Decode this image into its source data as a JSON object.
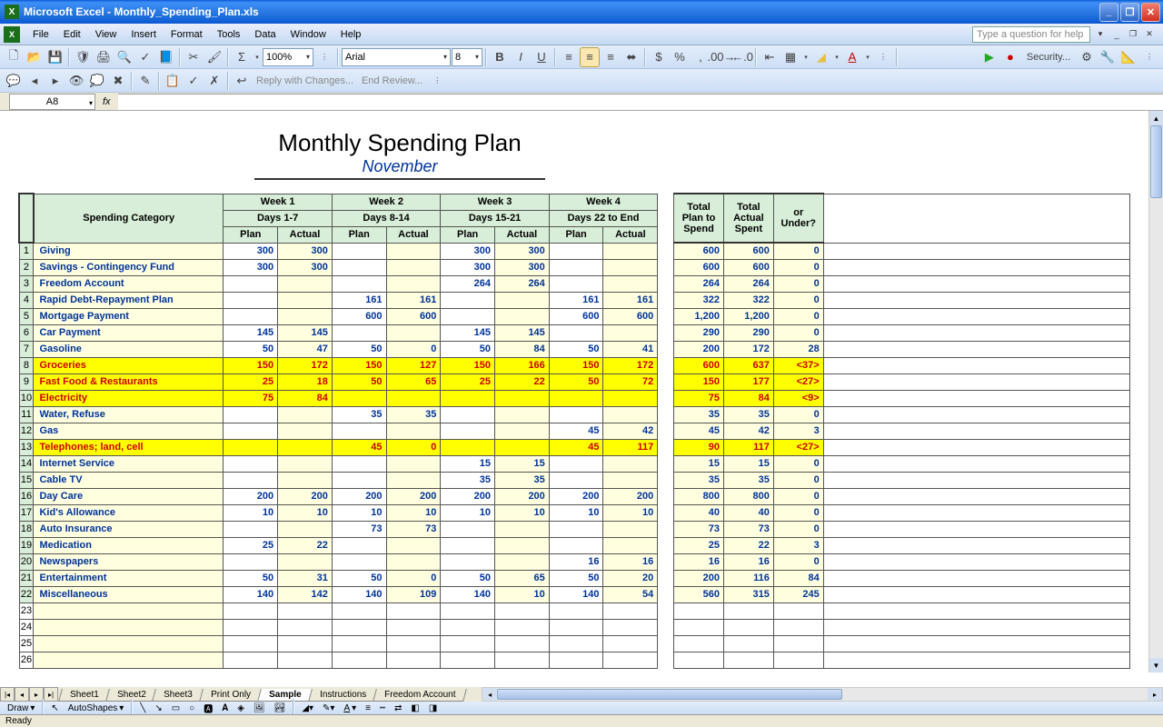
{
  "window": {
    "title": "Microsoft Excel - Monthly_Spending_Plan.xls"
  },
  "menu": [
    "File",
    "Edit",
    "View",
    "Insert",
    "Format",
    "Tools",
    "Data",
    "Window",
    "Help"
  ],
  "help_placeholder": "Type a question for help",
  "toolbar": {
    "zoom": "100%",
    "font": "Arial",
    "size": "8"
  },
  "reviewing": {
    "reply": "Reply with Changes...",
    "end": "End Review..."
  },
  "namebox": "A8",
  "doc": {
    "title": "Monthly Spending Plan",
    "subtitle": "November"
  },
  "headers": {
    "category": "Spending Category",
    "weeks": [
      {
        "top": "Week 1",
        "sub": "Days 1-7"
      },
      {
        "top": "Week 2",
        "sub": "Days 8-14"
      },
      {
        "top": "Week 3",
        "sub": "Days 15-21"
      },
      {
        "top": "Week 4",
        "sub": "Days 22 to End"
      }
    ],
    "plan": "Plan",
    "actual": "Actual",
    "totals": [
      "Total Plan to Spend",
      "Total Actual Spent",
      "<Over> or Under?"
    ]
  },
  "rows": [
    {
      "n": 1,
      "cat": "Giving",
      "w": [
        [
          "300",
          "300"
        ],
        [
          "",
          ""
        ],
        [
          "300",
          "300"
        ],
        [
          "",
          ""
        ]
      ],
      "t": [
        "600",
        "600",
        "0"
      ]
    },
    {
      "n": 2,
      "cat": "Savings - Contingency Fund",
      "w": [
        [
          "300",
          "300"
        ],
        [
          "",
          ""
        ],
        [
          "300",
          "300"
        ],
        [
          "",
          ""
        ]
      ],
      "t": [
        "600",
        "600",
        "0"
      ]
    },
    {
      "n": 3,
      "cat": "Freedom Account",
      "w": [
        [
          "",
          ""
        ],
        [
          "",
          ""
        ],
        [
          "264",
          "264"
        ],
        [
          "",
          ""
        ]
      ],
      "t": [
        "264",
        "264",
        "0"
      ]
    },
    {
      "n": 4,
      "cat": "Rapid Debt-Repayment Plan",
      "w": [
        [
          "",
          ""
        ],
        [
          "161",
          "161"
        ],
        [
          "",
          ""
        ],
        [
          "161",
          "161"
        ]
      ],
      "t": [
        "322",
        "322",
        "0"
      ]
    },
    {
      "n": 5,
      "cat": "Mortgage Payment",
      "w": [
        [
          "",
          ""
        ],
        [
          "600",
          "600"
        ],
        [
          "",
          ""
        ],
        [
          "600",
          "600"
        ]
      ],
      "t": [
        "1,200",
        "1,200",
        "0"
      ]
    },
    {
      "n": 6,
      "cat": "Car Payment",
      "w": [
        [
          "145",
          "145"
        ],
        [
          "",
          ""
        ],
        [
          "145",
          "145"
        ],
        [
          "",
          ""
        ]
      ],
      "t": [
        "290",
        "290",
        "0"
      ]
    },
    {
      "n": 7,
      "cat": "Gasoline",
      "w": [
        [
          "50",
          "47"
        ],
        [
          "50",
          "0"
        ],
        [
          "50",
          "84"
        ],
        [
          "50",
          "41"
        ]
      ],
      "t": [
        "200",
        "172",
        "28"
      ]
    },
    {
      "n": 8,
      "cat": "Groceries",
      "over": true,
      "w": [
        [
          "150",
          "172"
        ],
        [
          "150",
          "127"
        ],
        [
          "150",
          "166"
        ],
        [
          "150",
          "172"
        ]
      ],
      "t": [
        "600",
        "637",
        "<37>"
      ]
    },
    {
      "n": 9,
      "cat": "Fast Food & Restaurants",
      "over": true,
      "w": [
        [
          "25",
          "18"
        ],
        [
          "50",
          "65"
        ],
        [
          "25",
          "22"
        ],
        [
          "50",
          "72"
        ]
      ],
      "t": [
        "150",
        "177",
        "<27>"
      ]
    },
    {
      "n": 10,
      "cat": "Electricity",
      "over": true,
      "w": [
        [
          "75",
          "84"
        ],
        [
          "",
          ""
        ],
        [
          "",
          ""
        ],
        [
          "",
          ""
        ]
      ],
      "t": [
        "75",
        "84",
        "<9>"
      ]
    },
    {
      "n": 11,
      "cat": "Water, Refuse",
      "w": [
        [
          "",
          ""
        ],
        [
          "35",
          "35"
        ],
        [
          "",
          ""
        ],
        [
          "",
          ""
        ]
      ],
      "t": [
        "35",
        "35",
        "0"
      ]
    },
    {
      "n": 12,
      "cat": "Gas",
      "w": [
        [
          "",
          ""
        ],
        [
          "",
          ""
        ],
        [
          "",
          ""
        ],
        [
          "45",
          "42"
        ]
      ],
      "t": [
        "45",
        "42",
        "3"
      ]
    },
    {
      "n": 13,
      "cat": "Telephones; land, cell",
      "over": true,
      "w": [
        [
          "",
          ""
        ],
        [
          "45",
          "0"
        ],
        [
          "",
          ""
        ],
        [
          "45",
          "117"
        ]
      ],
      "t": [
        "90",
        "117",
        "<27>"
      ]
    },
    {
      "n": 14,
      "cat": "Internet Service",
      "w": [
        [
          "",
          ""
        ],
        [
          "",
          ""
        ],
        [
          "15",
          "15"
        ],
        [
          "",
          ""
        ]
      ],
      "t": [
        "15",
        "15",
        "0"
      ]
    },
    {
      "n": 15,
      "cat": "Cable TV",
      "w": [
        [
          "",
          ""
        ],
        [
          "",
          ""
        ],
        [
          "35",
          "35"
        ],
        [
          "",
          ""
        ]
      ],
      "t": [
        "35",
        "35",
        "0"
      ]
    },
    {
      "n": 16,
      "cat": "Day Care",
      "w": [
        [
          "200",
          "200"
        ],
        [
          "200",
          "200"
        ],
        [
          "200",
          "200"
        ],
        [
          "200",
          "200"
        ]
      ],
      "t": [
        "800",
        "800",
        "0"
      ]
    },
    {
      "n": 17,
      "cat": "Kid's Allowance",
      "w": [
        [
          "10",
          "10"
        ],
        [
          "10",
          "10"
        ],
        [
          "10",
          "10"
        ],
        [
          "10",
          "10"
        ]
      ],
      "t": [
        "40",
        "40",
        "0"
      ]
    },
    {
      "n": 18,
      "cat": "Auto Insurance",
      "w": [
        [
          "",
          ""
        ],
        [
          "73",
          "73"
        ],
        [
          "",
          ""
        ],
        [
          "",
          ""
        ]
      ],
      "t": [
        "73",
        "73",
        "0"
      ]
    },
    {
      "n": 19,
      "cat": "Medication",
      "w": [
        [
          "25",
          "22"
        ],
        [
          "",
          ""
        ],
        [
          "",
          ""
        ],
        [
          "",
          ""
        ]
      ],
      "t": [
        "25",
        "22",
        "3"
      ]
    },
    {
      "n": 20,
      "cat": "Newspapers",
      "w": [
        [
          "",
          ""
        ],
        [
          "",
          ""
        ],
        [
          "",
          ""
        ],
        [
          "16",
          "16"
        ]
      ],
      "t": [
        "16",
        "16",
        "0"
      ]
    },
    {
      "n": 21,
      "cat": "Entertainment",
      "w": [
        [
          "50",
          "31"
        ],
        [
          "50",
          "0"
        ],
        [
          "50",
          "65"
        ],
        [
          "50",
          "20"
        ]
      ],
      "t": [
        "200",
        "116",
        "84"
      ]
    },
    {
      "n": 22,
      "cat": "Miscellaneous",
      "w": [
        [
          "140",
          "142"
        ],
        [
          "140",
          "109"
        ],
        [
          "140",
          "10"
        ],
        [
          "140",
          "54"
        ]
      ],
      "t": [
        "560",
        "315",
        "245"
      ]
    }
  ],
  "tabs": [
    "Sheet1",
    "Sheet2",
    "Sheet3",
    "Print Only",
    "Sample",
    "Instructions",
    "Freedom Account"
  ],
  "active_tab": "Sample",
  "draw": {
    "label": "Draw",
    "autoshapes": "AutoShapes"
  },
  "security": "Security...",
  "status": "Ready"
}
